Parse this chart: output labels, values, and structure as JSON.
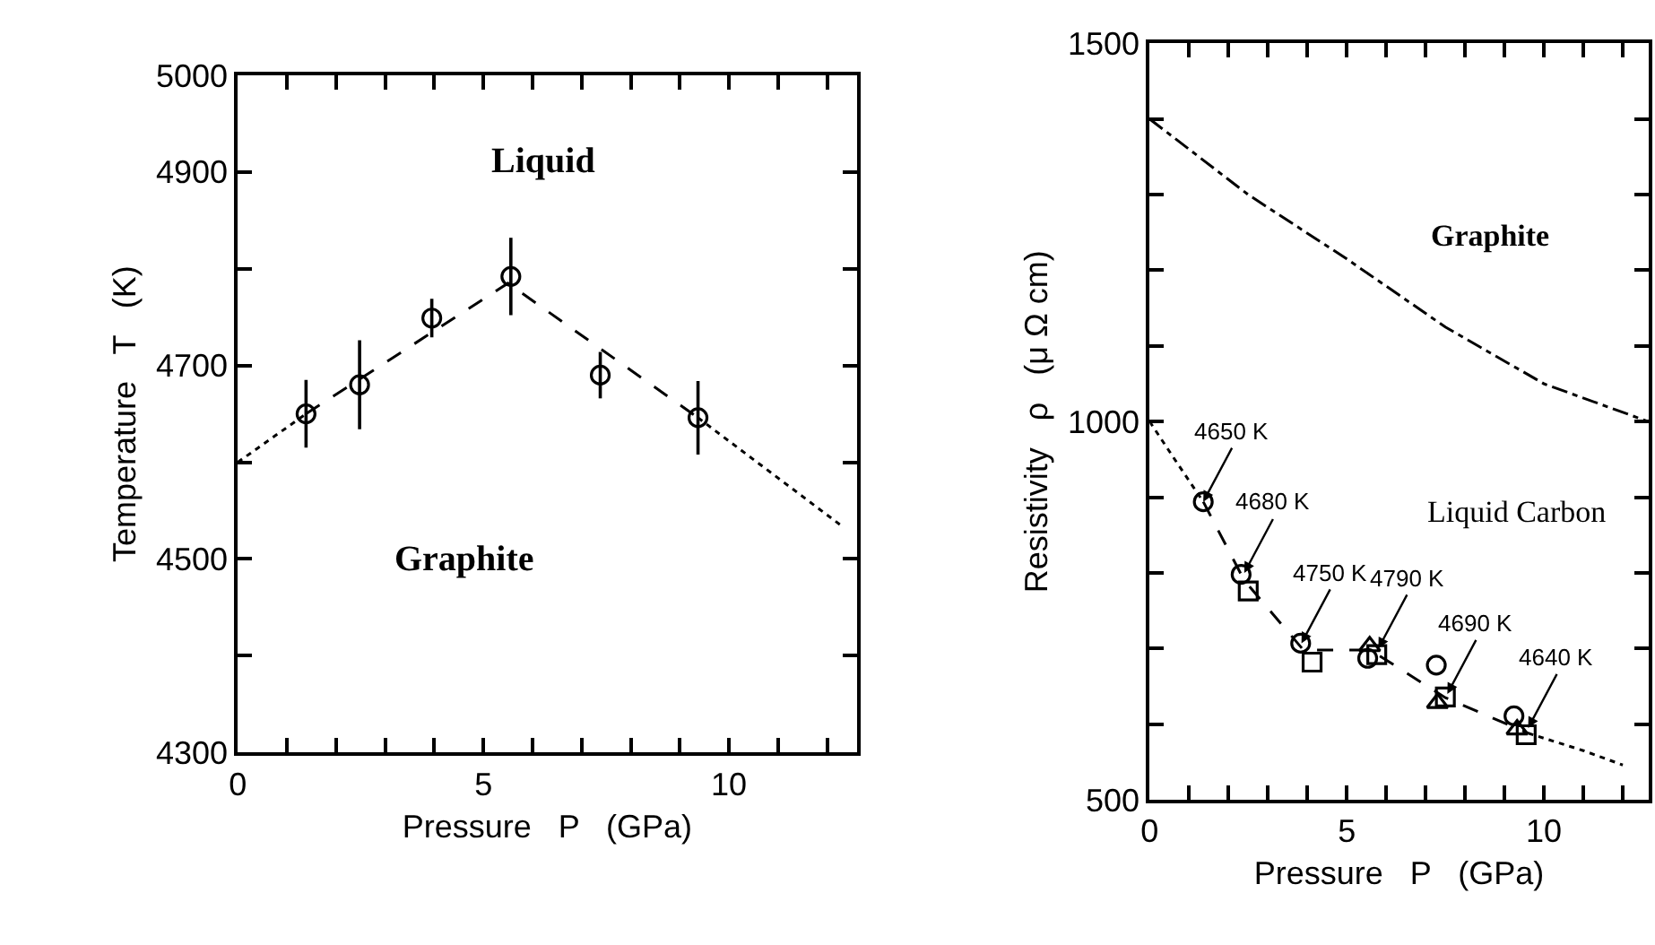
{
  "chart_data": [
    {
      "type": "scatter",
      "xlabel": "Pressure   P   (GPa)",
      "ylabel": "Temperature   T   (K)",
      "xlim": [
        0,
        12.6
      ],
      "ylim": [
        4300,
        5000
      ],
      "xticks": [
        0,
        {
          "value": 1,
          "label": null
        },
        {
          "value": 2,
          "label": null
        },
        {
          "value": 3,
          "label": null
        },
        {
          "value": 4,
          "label": null
        },
        5,
        {
          "value": 6,
          "label": null
        },
        {
          "value": 7,
          "label": null
        },
        {
          "value": 8,
          "label": null
        },
        {
          "value": 9,
          "label": null
        },
        10,
        {
          "value": 11,
          "label": null
        },
        {
          "value": 12,
          "label": null
        }
      ],
      "yticks": [
        4300,
        {
          "value": 4400,
          "label": null
        },
        4500,
        {
          "value": 4600,
          "label": null
        },
        4700,
        {
          "value": 4800,
          "label": null
        },
        4900,
        5000
      ],
      "series": [
        {
          "type": "line",
          "line_style": "dotted",
          "color": "#000000",
          "x": [
            0,
            1.39
          ],
          "values": [
            4600,
            4650
          ]
        },
        {
          "type": "line",
          "line_style": "dashed",
          "color": "#000000",
          "x": [
            1.39,
            5.5,
            9.37
          ],
          "values": [
            4650,
            4785,
            4646
          ]
        },
        {
          "type": "line",
          "line_style": "dotted",
          "color": "#000000",
          "x": [
            9.37,
            12.3
          ],
          "values": [
            4646,
            4534
          ]
        },
        {
          "marker": "circle",
          "color": "#000000",
          "x": [
            1.39,
            2.48,
            3.95,
            5.56,
            7.38,
            9.37
          ],
          "values": [
            4650,
            4680,
            4749,
            4792,
            4690,
            4646
          ],
          "errors": [
            35,
            46,
            20,
            40,
            24,
            38
          ]
        }
      ],
      "annotations": [
        "Liquid",
        "Graphite"
      ]
    },
    {
      "type": "scatter",
      "xlabel": "Pressure   P   (GPa)",
      "ylabel": "Resistivity   ρ   (μ Ω cm)",
      "xlim": [
        0,
        12.65
      ],
      "ylim": [
        500,
        1500
      ],
      "xticks": [
        0,
        {
          "value": 1,
          "label": null
        },
        {
          "value": 2,
          "label": null
        },
        {
          "value": 3,
          "label": null
        },
        {
          "value": 4,
          "label": null
        },
        5,
        {
          "value": 6,
          "label": null
        },
        {
          "value": 7,
          "label": null
        },
        {
          "value": 8,
          "label": null
        },
        {
          "value": 9,
          "label": null
        },
        10,
        {
          "value": 11,
          "label": null
        },
        {
          "value": 12,
          "label": null
        }
      ],
      "yticks": [
        500,
        {
          "value": 600,
          "label": null
        },
        {
          "value": 700,
          "label": null
        },
        {
          "value": 800,
          "label": null
        },
        {
          "value": 900,
          "label": null
        },
        1000,
        {
          "value": 1100,
          "label": null
        },
        {
          "value": 1200,
          "label": null
        },
        {
          "value": 1300,
          "label": null
        },
        {
          "value": 1400,
          "label": null
        },
        1500
      ],
      "series": [
        {
          "type": "line",
          "line_style": "dashdot",
          "color": "#000000",
          "x": [
            0,
            2.5,
            5,
            7.5,
            10,
            12.65
          ],
          "values": [
            1400,
            1300,
            1215,
            1125,
            1050,
            1000
          ]
        },
        {
          "type": "line",
          "line_style": "dotted",
          "color": "#000000",
          "x": [
            0,
            0.7,
            1.36
          ],
          "values": [
            1000,
            945,
            894
          ]
        },
        {
          "type": "line",
          "line_style": "dashed",
          "color": "#000000",
          "x": [
            1.36,
            2.4,
            3.9,
            5.6,
            7.5,
            9.6
          ],
          "values": [
            894,
            790,
            698,
            698,
            635,
            588
          ]
        },
        {
          "type": "line",
          "line_style": "dotted",
          "color": "#000000",
          "x": [
            9.6,
            11.0,
            12.0
          ],
          "values": [
            588,
            565,
            546
          ]
        },
        {
          "marker": "circle",
          "color": "#000000",
          "x": [
            1.36,
            2.32,
            3.83,
            5.53,
            7.27,
            9.24
          ],
          "values": [
            894,
            798,
            707,
            687,
            678,
            611
          ]
        },
        {
          "marker": "square",
          "color": "#000000",
          "x": [
            2.5,
            4.12,
            5.76,
            7.5,
            9.55
          ],
          "values": [
            776,
            682,
            692,
            636,
            586
          ]
        },
        {
          "marker": "triangle",
          "color": "#000000",
          "x": [
            5.58,
            7.3,
            9.32
          ],
          "values": [
            703,
            628,
            593
          ]
        }
      ],
      "annotations": [
        "Graphite",
        "Liquid Carbon",
        {
          "text": "4650 K",
          "x": 1.36,
          "y": 894
        },
        {
          "text": "4680 K",
          "x": 2.4,
          "y": 800
        },
        {
          "text": "4750 K",
          "x": 3.85,
          "y": 707
        },
        {
          "text": "4790 K",
          "x": 5.8,
          "y": 700
        },
        {
          "text": "4690 K",
          "x": 7.55,
          "y": 640
        },
        {
          "text": "4640 K",
          "x": 9.6,
          "y": 595
        }
      ]
    }
  ]
}
